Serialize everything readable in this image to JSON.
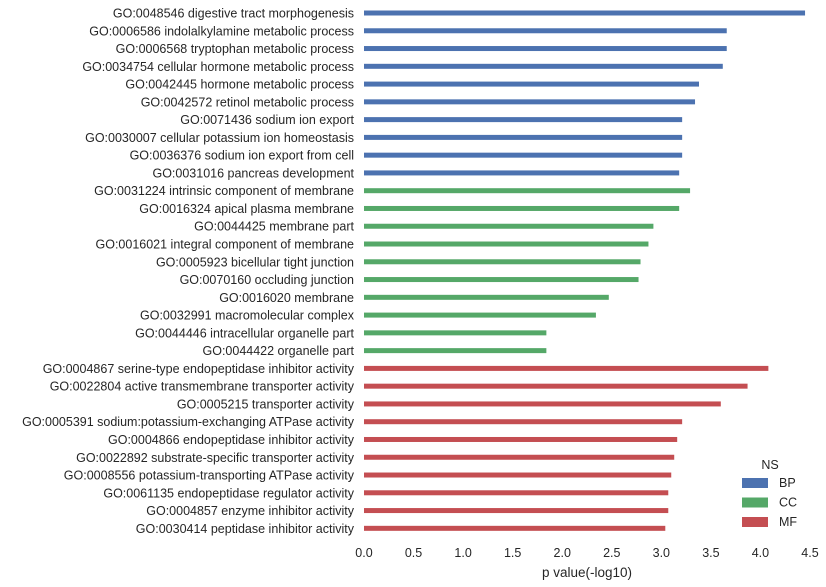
{
  "chart_data": {
    "type": "bar",
    "orientation": "horizontal",
    "categories": [
      "GO:0048546 digestive tract morphogenesis",
      "GO:0006586 indolalkylamine metabolic process",
      "GO:0006568 tryptophan metabolic process",
      "GO:0034754 cellular hormone metabolic process",
      "GO:0042445 hormone metabolic process",
      "GO:0042572 retinol metabolic process",
      "GO:0071436 sodium ion export",
      "GO:0030007 cellular potassium ion homeostasis",
      "GO:0036376 sodium ion export from cell",
      "GO:0031016 pancreas development",
      "GO:0031224 intrinsic component of membrane",
      "GO:0016324 apical plasma membrane",
      "GO:0044425 membrane part",
      "GO:0016021 integral component of membrane",
      "GO:0005923 bicellular tight junction",
      "GO:0070160 occluding junction",
      "GO:0016020 membrane",
      "GO:0032991 macromolecular complex",
      "GO:0044446 intracellular organelle part",
      "GO:0044422 organelle part",
      "GO:0004867 serine-type endopeptidase inhibitor activity",
      "GO:0022804 active transmembrane transporter activity",
      "GO:0005215 transporter activity",
      "GO:0005391 sodium:potassium-exchanging ATPase activity",
      "GO:0004866 endopeptidase inhibitor activity",
      "GO:0022892 substrate-specific transporter activity",
      "GO:0008556 potassium-transporting ATPase activity",
      "GO:0061135 endopeptidase regulator activity",
      "GO:0004857 enzyme inhibitor activity",
      "GO:0030414 peptidase inhibitor activity"
    ],
    "values": [
      4.45,
      3.66,
      3.66,
      3.62,
      3.38,
      3.34,
      3.21,
      3.21,
      3.21,
      3.18,
      3.29,
      3.18,
      2.92,
      2.87,
      2.79,
      2.77,
      2.47,
      2.34,
      1.84,
      1.84,
      4.08,
      3.87,
      3.6,
      3.21,
      3.16,
      3.13,
      3.1,
      3.07,
      3.07,
      3.04
    ],
    "groups": [
      "BP",
      "BP",
      "BP",
      "BP",
      "BP",
      "BP",
      "BP",
      "BP",
      "BP",
      "BP",
      "CC",
      "CC",
      "CC",
      "CC",
      "CC",
      "CC",
      "CC",
      "CC",
      "CC",
      "CC",
      "MF",
      "MF",
      "MF",
      "MF",
      "MF",
      "MF",
      "MF",
      "MF",
      "MF",
      "MF"
    ],
    "title": "",
    "xlabel": "p value(-log10)",
    "ylabel": "",
    "xlim": [
      0,
      4.5
    ],
    "xticks": [
      "0.0",
      "0.5",
      "1.0",
      "1.5",
      "2.0",
      "2.5",
      "3.0",
      "3.5",
      "4.0",
      "4.5"
    ],
    "grid": false,
    "legend": {
      "title": "NS",
      "placement": "lower-right",
      "entries": [
        {
          "name": "BP",
          "color": "#4c72b0"
        },
        {
          "name": "CC",
          "color": "#55a868"
        },
        {
          "name": "MF",
          "color": "#c44e52"
        }
      ]
    }
  }
}
